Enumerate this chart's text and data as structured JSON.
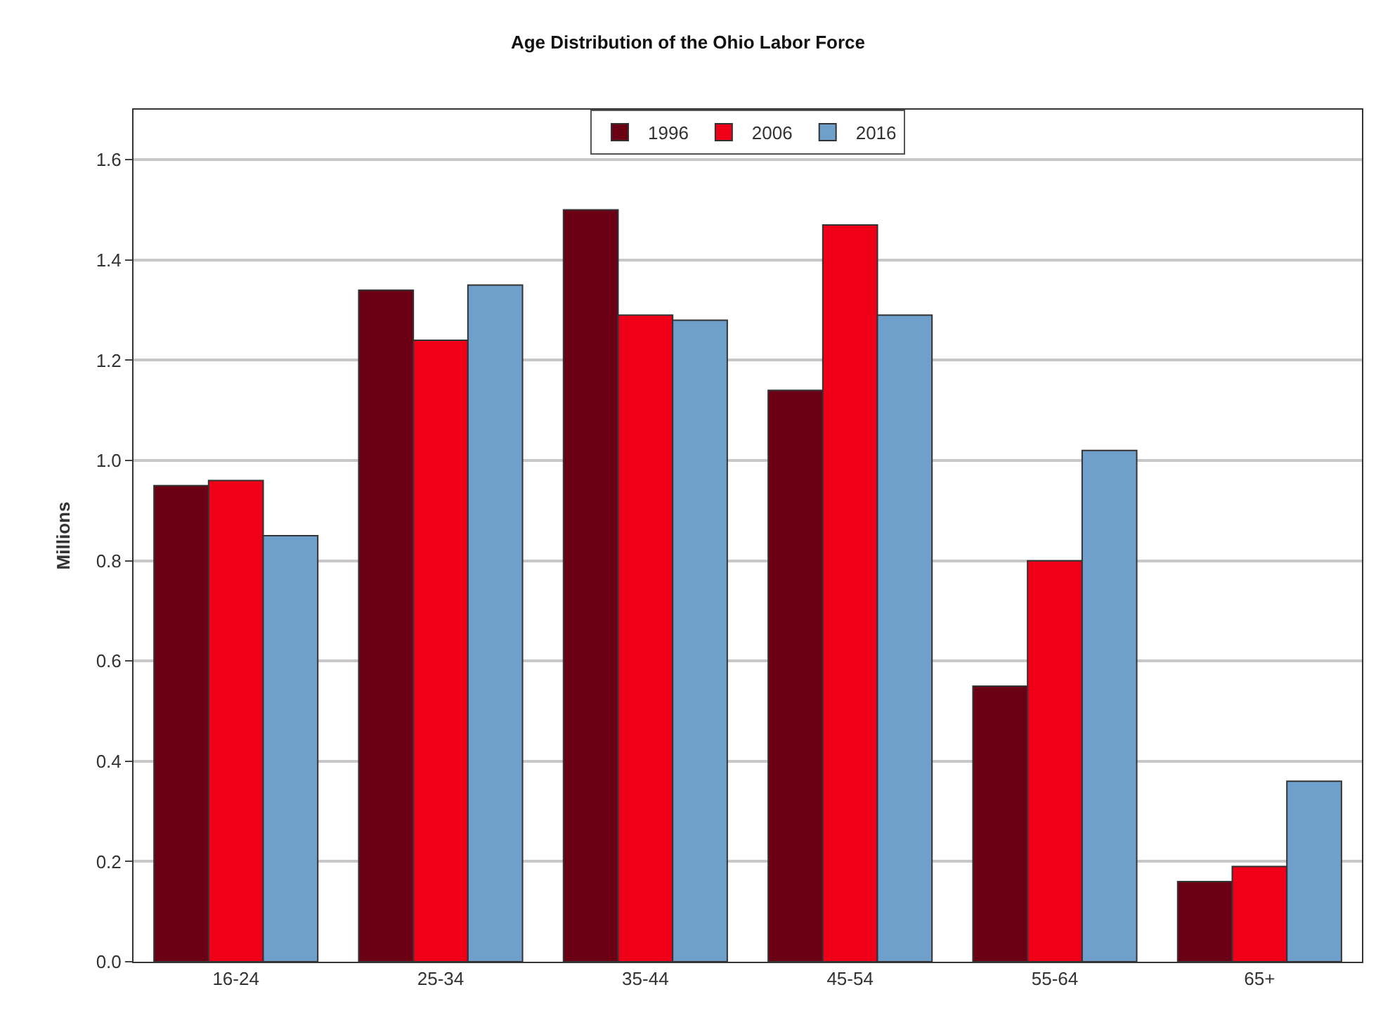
{
  "chart_data": {
    "type": "bar",
    "title": "Age Distribution of the Ohio Labor Force",
    "ylabel": "Millions",
    "categories": [
      "16-24",
      "25-34",
      "35-44",
      "45-54",
      "55-64",
      "65+"
    ],
    "series": [
      {
        "name": "1996",
        "color": "#6b0015",
        "values": [
          0.95,
          1.34,
          1.5,
          1.14,
          0.55,
          0.16
        ]
      },
      {
        "name": "2006",
        "color": "#f00018",
        "values": [
          0.96,
          1.24,
          1.29,
          1.47,
          0.8,
          0.19
        ]
      },
      {
        "name": "2016",
        "color": "#6fa0cc",
        "values": [
          0.85,
          1.35,
          1.28,
          1.29,
          1.02,
          0.36
        ]
      }
    ],
    "ylim": [
      0,
      1.7
    ],
    "yticks": [
      {
        "value": 0,
        "label": "0.0"
      },
      0.2,
      0.4,
      0.6,
      0.8,
      {
        "value": 1,
        "label": "1.0"
      },
      1.2,
      1.4,
      1.6
    ],
    "grid": "y",
    "legend": "top"
  }
}
